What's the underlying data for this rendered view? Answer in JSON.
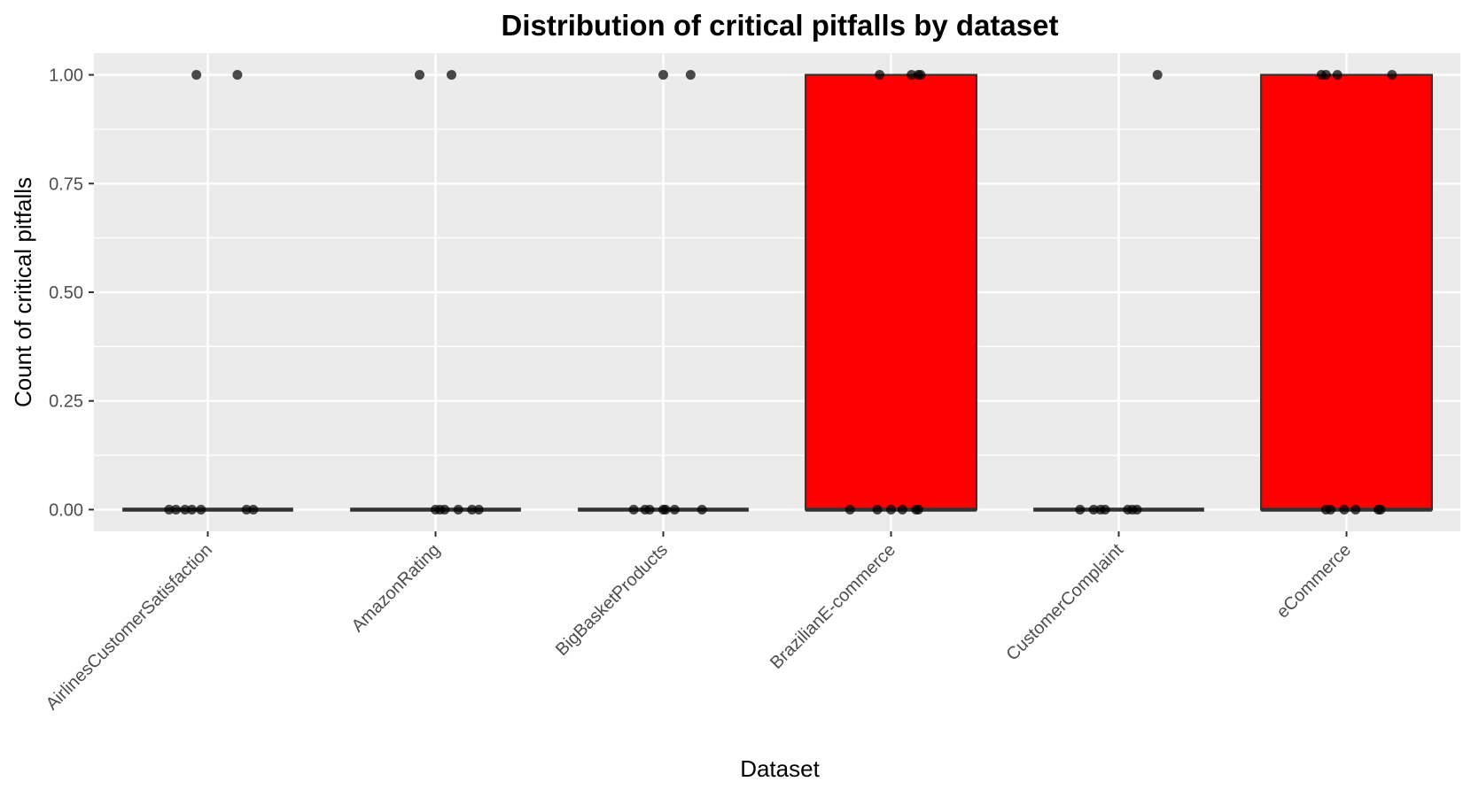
{
  "chart_data": {
    "type": "box",
    "title": "Distribution of critical pitfalls by dataset",
    "xlabel": "Dataset",
    "ylabel": "Count of critical pitfalls",
    "ylim": [
      -0.05,
      1.05
    ],
    "yticks": [
      0,
      0.25,
      0.5,
      0.75,
      1
    ],
    "ytick_labels": [
      "0.00",
      "0.25",
      "0.50",
      "0.75",
      "1.00"
    ],
    "grid": true,
    "legend": "none",
    "categories": [
      "AirlinesCustomerSatisfaction",
      "AmazonRating",
      "BigBasketProducts",
      "BrazilianE-commerce",
      "CustomerComplaint",
      "eCommerce"
    ],
    "boxes": [
      {
        "category": "AirlinesCustomerSatisfaction",
        "q1": 0,
        "median": 0,
        "q3": 0,
        "whisker_low": 0,
        "whisker_high": 0,
        "fill": "#ffffff"
      },
      {
        "category": "AmazonRating",
        "q1": 0,
        "median": 0,
        "q3": 0,
        "whisker_low": 0,
        "whisker_high": 0,
        "fill": "#ffffff"
      },
      {
        "category": "BigBasketProducts",
        "q1": 0,
        "median": 0,
        "q3": 0,
        "whisker_low": 0,
        "whisker_high": 0,
        "fill": "#ffffff"
      },
      {
        "category": "BrazilianE-commerce",
        "q1": 0,
        "median": 0,
        "q3": 1,
        "whisker_low": 0,
        "whisker_high": 1,
        "fill": "#ff0000"
      },
      {
        "category": "CustomerComplaint",
        "q1": 0,
        "median": 0,
        "q3": 0,
        "whisker_low": 0,
        "whisker_high": 0,
        "fill": "#ffffff"
      },
      {
        "category": "eCommerce",
        "q1": 0,
        "median": 0,
        "q3": 1,
        "whisker_low": 0,
        "whisker_high": 1,
        "fill": "#ff0000"
      }
    ],
    "points": [
      {
        "category": "AirlinesCustomerSatisfaction",
        "jitter": [
          -0.05,
          -0.14,
          -0.07,
          0.13
        ],
        "y": [
          1,
          0,
          0,
          1
        ]
      },
      {
        "category": "AirlinesCustomerSatisfaction",
        "jitter": [
          0.17,
          0.2,
          -0.17,
          -0.1,
          -0.03
        ],
        "y": [
          0,
          0,
          0,
          0,
          0
        ]
      },
      {
        "category": "AmazonRating",
        "jitter": [
          -0.07,
          0.07
        ],
        "y": [
          1,
          1
        ]
      },
      {
        "category": "AmazonRating",
        "jitter": [
          0.0,
          0.04,
          0.1,
          0.16,
          0.19,
          0.02
        ],
        "y": [
          0,
          0,
          0,
          0,
          0,
          0
        ]
      },
      {
        "category": "BigBasketProducts",
        "jitter": [
          0.0,
          0.12
        ],
        "y": [
          1,
          1
        ]
      },
      {
        "category": "BigBasketProducts",
        "jitter": [
          -0.13,
          -0.08,
          -0.06,
          0.0,
          0.01,
          0.05,
          0.17
        ],
        "y": [
          0,
          0,
          0,
          0,
          0,
          0,
          0
        ]
      },
      {
        "category": "BrazilianE-commerce",
        "jitter": [
          -0.05,
          0.09,
          0.12,
          0.13
        ],
        "y": [
          1,
          1,
          1,
          1
        ]
      },
      {
        "category": "BrazilianE-commerce",
        "jitter": [
          -0.18,
          -0.06,
          0.0,
          0.05,
          0.11,
          0.12
        ],
        "y": [
          0,
          0,
          0,
          0,
          0,
          0
        ]
      },
      {
        "category": "CustomerComplaint",
        "jitter": [
          0.17
        ],
        "y": [
          1
        ]
      },
      {
        "category": "CustomerComplaint",
        "jitter": [
          -0.17,
          -0.11,
          -0.08,
          -0.06,
          0.04,
          0.06,
          0.08
        ],
        "y": [
          0,
          0,
          0,
          0,
          0,
          0,
          0
        ]
      },
      {
        "category": "eCommerce",
        "jitter": [
          -0.11,
          -0.09,
          -0.04,
          0.2
        ],
        "y": [
          1,
          1,
          1,
          1
        ]
      },
      {
        "category": "eCommerce",
        "jitter": [
          -0.09,
          -0.07,
          -0.01,
          0.04,
          0.14,
          0.15
        ],
        "y": [
          0,
          0,
          0,
          0,
          0,
          0
        ]
      }
    ],
    "colors": {
      "panel": "#ebebeb",
      "grid": "#ffffff",
      "box_line": "#333333",
      "point": "#000000",
      "highlight_fill": "#ff0000"
    }
  }
}
